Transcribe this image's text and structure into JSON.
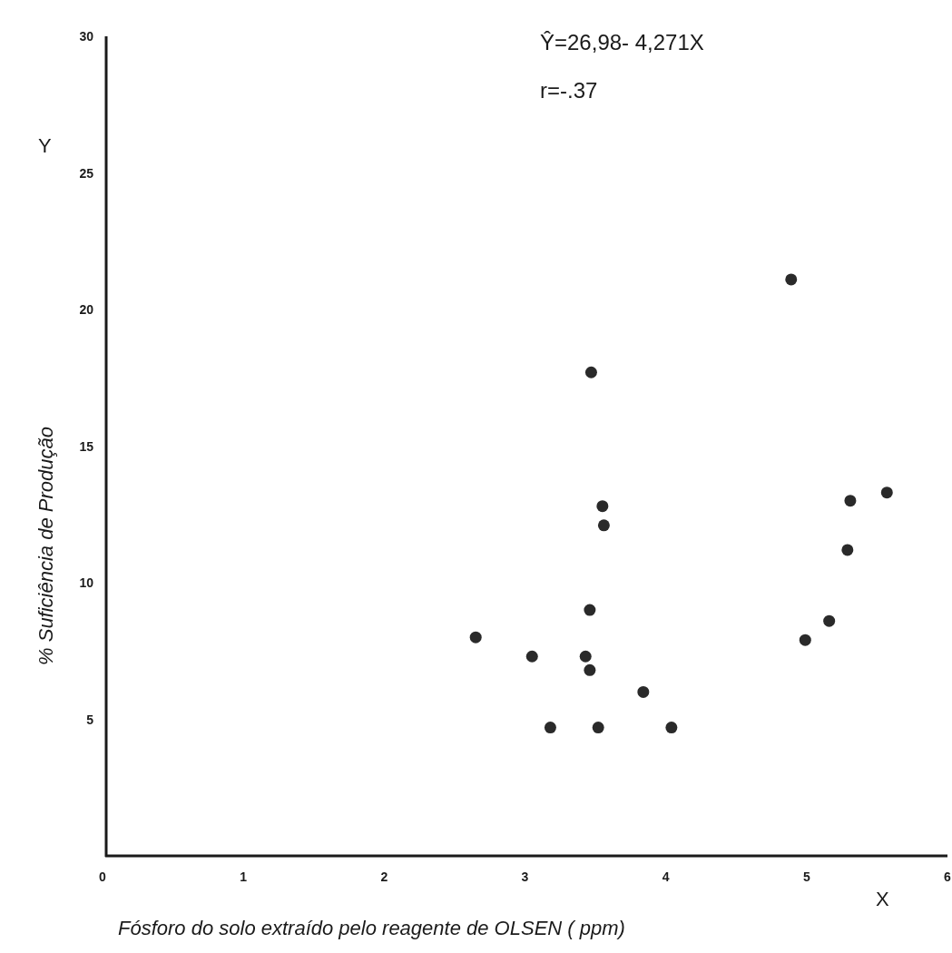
{
  "chart_data": {
    "type": "scatter",
    "xlabel": "Fósforo do solo extraído pelo reagente de OLSEN ( ppm)",
    "ylabel": "% Suficiência de Produção",
    "annotations": [
      "Ŷ=26,98- 4,271X",
      "r=-.37",
      "Y",
      "X"
    ],
    "xlim": [
      0,
      6
    ],
    "ylim": [
      0,
      30
    ],
    "xticks": [
      0,
      1,
      2,
      3,
      4,
      5,
      6
    ],
    "yticks": [
      5,
      10,
      15,
      20,
      25,
      30
    ],
    "grid": false,
    "marker": "circle",
    "series": [
      {
        "color": "#2a2a2a",
        "x": [
          4.89,
          3.47,
          3.55,
          3.56,
          5.31,
          5.57,
          5.29,
          3.46,
          5.16,
          2.65,
          4.99,
          3.05,
          3.43,
          3.46,
          3.84,
          3.18,
          3.52,
          4.04
        ],
        "values": [
          21.1,
          17.7,
          12.8,
          12.1,
          13.0,
          13.3,
          11.2,
          9.0,
          8.6,
          8.0,
          7.9,
          7.3,
          7.3,
          6.8,
          6.0,
          4.7,
          4.7,
          4.7
        ]
      }
    ]
  }
}
